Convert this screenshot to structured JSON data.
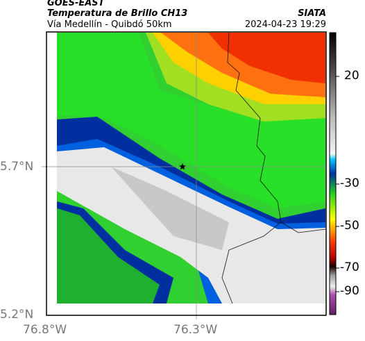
{
  "header": {
    "source": "GOES-EAST",
    "title": "Temperatura de Brillo CH13",
    "route": "Vía Medellín - Quibdó 50km",
    "agency": "SIATA",
    "timestamp": "2024-04-23 19:29"
  },
  "map": {
    "lat_labels": [
      "5.7°N",
      "5.2°N"
    ],
    "lon_labels": [
      "76.8°W",
      "76.3°W"
    ]
  },
  "colorbar": {
    "tick_labels": [
      "20",
      "-30",
      "-50",
      "-70",
      "-90"
    ]
  }
}
